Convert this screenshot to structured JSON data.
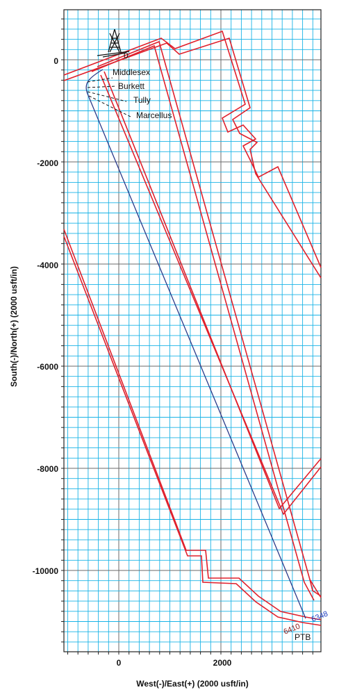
{
  "plot": {
    "x_axis_title": "West(-)/East(+) (2000 usft/in)",
    "y_axis_title": "South(-)/North(+) (2000 usft/in)",
    "x_ticks": [
      "0",
      "2000"
    ],
    "y_ticks": [
      "0",
      "-2000",
      "-4000",
      "-6000",
      "-8000",
      "-10000"
    ],
    "formations": [
      "Middlesex",
      "Burkett",
      "Tully",
      "Marcellus"
    ],
    "surface_label": "0",
    "end_label_a": "6348",
    "end_label_b": "6410",
    "end_label_c": "PTB",
    "grid_color": "#19b3e6",
    "boundary_color": "#e0202c",
    "wellpath_color": "#2a3a8a"
  }
}
